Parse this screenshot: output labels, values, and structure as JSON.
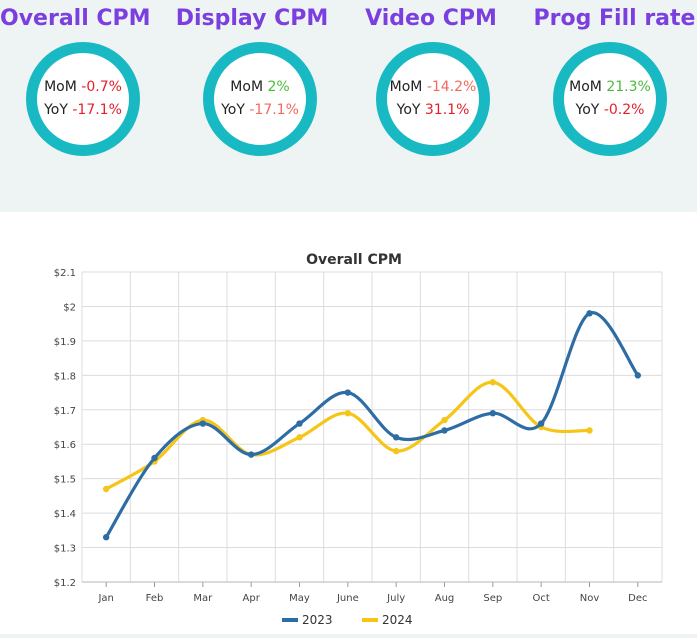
{
  "kpis": [
    {
      "title": "Overall CPM",
      "mom_label": "MoM",
      "mom_value": "-0.7%",
      "yoy_label": "YoY",
      "yoy_value": "-17.1%"
    },
    {
      "title": "Display CPM",
      "mom_label": "MoM",
      "mom_value": "2%",
      "yoy_label": "YoY",
      "yoy_value": "-17.1%"
    },
    {
      "title": "Video CPM",
      "mom_label": "MoM",
      "mom_value": "-14.2%",
      "yoy_label": "YoY",
      "yoy_value": "31.1%"
    },
    {
      "title": "Prog Fill rate",
      "mom_label": "MoM",
      "mom_value": "21.3%",
      "yoy_label": "YoY",
      "yoy_value": "-0.2%"
    }
  ],
  "colors": {
    "title": "#7b3fe0",
    "ring": "#19b9c4",
    "negative": "#e4202c",
    "positive": "#4cbb3c",
    "series_2023": "#2e6da4",
    "series_2024": "#f5c518"
  },
  "chart_data": {
    "type": "line",
    "title": "Overall CPM",
    "xlabel": "",
    "ylabel": "",
    "categories": [
      "Jan",
      "Feb",
      "Mar",
      "Apr",
      "May",
      "June",
      "July",
      "Aug",
      "Sep",
      "Oct",
      "Nov",
      "Dec"
    ],
    "yticks": [
      "$1.2",
      "$1.3",
      "$1.4",
      "$1.5",
      "$1.6",
      "$1.7",
      "$1.8",
      "$1.9",
      "$2",
      "$2.1"
    ],
    "ylim": [
      1.2,
      2.1
    ],
    "grid": true,
    "legend_position": "bottom",
    "series": [
      {
        "name": "2023",
        "color": "#2e6da4",
        "values": [
          1.33,
          1.56,
          1.66,
          1.57,
          1.66,
          1.75,
          1.62,
          1.64,
          1.69,
          1.66,
          1.98,
          1.8
        ]
      },
      {
        "name": "2024",
        "color": "#f5c518",
        "values": [
          1.47,
          1.55,
          1.67,
          1.57,
          1.62,
          1.69,
          1.58,
          1.67,
          1.78,
          1.65,
          1.64,
          null
        ]
      }
    ]
  }
}
